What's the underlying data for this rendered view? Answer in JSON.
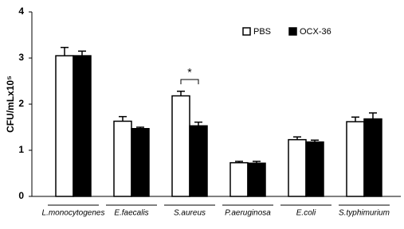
{
  "chart_data": {
    "type": "bar",
    "y_label": "CFU/mLx10⁵",
    "categories": [
      "L.monocytogenes",
      "E.faecalis",
      "S.aureus",
      "P.aeruginosa",
      "E.coli",
      "S.typhimurium"
    ],
    "series": [
      {
        "name": "PBS",
        "color": "#ffffff",
        "values": [
          3.05,
          1.63,
          2.18,
          0.73,
          1.23,
          1.62
        ],
        "errors": [
          0.18,
          0.1,
          0.1,
          0.03,
          0.06,
          0.1
        ]
      },
      {
        "name": "OCX-36",
        "color": "#000000",
        "values": [
          3.05,
          1.47,
          1.53,
          0.72,
          1.18,
          1.68
        ],
        "errors": [
          0.1,
          0.03,
          0.08,
          0.04,
          0.04,
          0.13
        ]
      }
    ],
    "annotation": "*",
    "ylim": [
      0,
      4
    ],
    "yticks": [
      0,
      1,
      2,
      3,
      4
    ],
    "grid": false
  }
}
